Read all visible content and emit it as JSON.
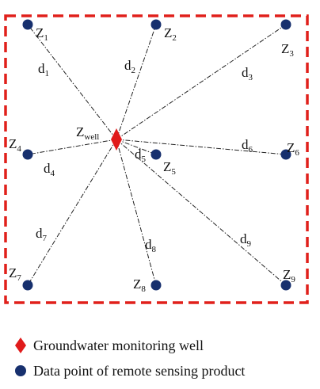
{
  "colors": {
    "border": "#e0201b",
    "dot": "#17306e",
    "well": "#e01b1b",
    "line": "#222222"
  },
  "well": {
    "base": "Z",
    "sub": "well"
  },
  "points": [
    {
      "base": "Z",
      "sub": "1",
      "line_base": "d",
      "line_sub": "1"
    },
    {
      "base": "Z",
      "sub": "2",
      "line_base": "d",
      "line_sub": "2"
    },
    {
      "base": "Z",
      "sub": "3",
      "line_base": "d",
      "line_sub": "3"
    },
    {
      "base": "Z",
      "sub": "4",
      "line_base": "d",
      "line_sub": "4"
    },
    {
      "base": "Z",
      "sub": "5",
      "line_base": "d",
      "line_sub": "5"
    },
    {
      "base": "Z",
      "sub": "6",
      "line_base": "d",
      "line_sub": "6"
    },
    {
      "base": "Z",
      "sub": "7",
      "line_base": "d",
      "line_sub": "7"
    },
    {
      "base": "Z",
      "sub": "8",
      "line_base": "d",
      "line_sub": "8"
    },
    {
      "base": "Z",
      "sub": "9",
      "line_base": "d",
      "line_sub": "9"
    }
  ],
  "legend": {
    "well_label": "Groundwater monitoring well",
    "well_icon": "red-diamond-icon",
    "point_label": "Data point of remote sensing product",
    "point_icon": "navy-dot-icon"
  }
}
